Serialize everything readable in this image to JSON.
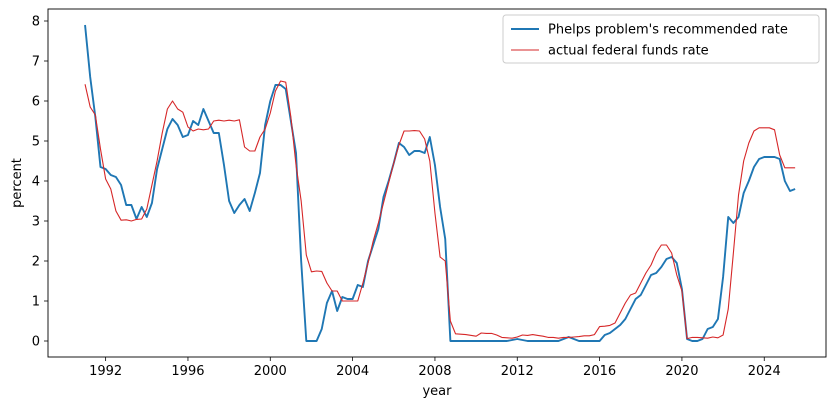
{
  "chart_data": {
    "type": "line",
    "xlabel": "year",
    "ylabel": "percent",
    "xlim": [
      1989.2,
      2027.0
    ],
    "ylim": [
      -0.4,
      8.3
    ],
    "x_ticks": [
      1992,
      1996,
      2000,
      2004,
      2008,
      2012,
      2016,
      2020,
      2024
    ],
    "y_ticks": [
      0,
      1,
      2,
      3,
      4,
      5,
      6,
      7,
      8
    ],
    "grid": false,
    "legend_position": "top-right",
    "series": [
      {
        "name": "Phelps problem's recommended rate",
        "color": "#1f77b4",
        "points": [
          [
            1991.0,
            7.9
          ],
          [
            1991.25,
            6.6
          ],
          [
            1991.5,
            5.6
          ],
          [
            1991.75,
            4.35
          ],
          [
            1992.0,
            4.3
          ],
          [
            1992.25,
            4.15
          ],
          [
            1992.5,
            4.1
          ],
          [
            1992.75,
            3.9
          ],
          [
            1993.0,
            3.4
          ],
          [
            1993.25,
            3.4
          ],
          [
            1993.5,
            3.05
          ],
          [
            1993.75,
            3.35
          ],
          [
            1994.0,
            3.1
          ],
          [
            1994.25,
            3.45
          ],
          [
            1994.5,
            4.3
          ],
          [
            1994.75,
            4.8
          ],
          [
            1995.0,
            5.3
          ],
          [
            1995.25,
            5.55
          ],
          [
            1995.5,
            5.4
          ],
          [
            1995.75,
            5.1
          ],
          [
            1996.0,
            5.15
          ],
          [
            1996.25,
            5.5
          ],
          [
            1996.5,
            5.4
          ],
          [
            1996.75,
            5.8
          ],
          [
            1997.0,
            5.5
          ],
          [
            1997.25,
            5.2
          ],
          [
            1997.5,
            5.2
          ],
          [
            1997.75,
            4.4
          ],
          [
            1998.0,
            3.5
          ],
          [
            1998.25,
            3.2
          ],
          [
            1998.5,
            3.4
          ],
          [
            1998.75,
            3.55
          ],
          [
            1999.0,
            3.25
          ],
          [
            1999.25,
            3.7
          ],
          [
            1999.5,
            4.2
          ],
          [
            1999.75,
            5.4
          ],
          [
            2000.0,
            6.0
          ],
          [
            2000.25,
            6.4
          ],
          [
            2000.5,
            6.4
          ],
          [
            2000.75,
            6.3
          ],
          [
            2001.0,
            5.5
          ],
          [
            2001.25,
            4.7
          ],
          [
            2001.5,
            2.0
          ],
          [
            2001.75,
            0.0
          ],
          [
            2002.0,
            0.0
          ],
          [
            2002.25,
            0.0
          ],
          [
            2002.5,
            0.3
          ],
          [
            2002.75,
            0.95
          ],
          [
            2003.0,
            1.25
          ],
          [
            2003.25,
            0.75
          ],
          [
            2003.5,
            1.1
          ],
          [
            2003.75,
            1.05
          ],
          [
            2004.0,
            1.05
          ],
          [
            2004.25,
            1.4
          ],
          [
            2004.5,
            1.35
          ],
          [
            2004.75,
            2.0
          ],
          [
            2005.0,
            2.4
          ],
          [
            2005.25,
            2.8
          ],
          [
            2005.5,
            3.6
          ],
          [
            2005.75,
            4.0
          ],
          [
            2006.0,
            4.45
          ],
          [
            2006.25,
            4.95
          ],
          [
            2006.5,
            4.85
          ],
          [
            2006.75,
            4.65
          ],
          [
            2007.0,
            4.75
          ],
          [
            2007.25,
            4.75
          ],
          [
            2007.5,
            4.7
          ],
          [
            2007.75,
            5.1
          ],
          [
            2008.0,
            4.4
          ],
          [
            2008.25,
            3.35
          ],
          [
            2008.5,
            2.55
          ],
          [
            2008.75,
            0.0
          ],
          [
            2009.0,
            0.0
          ],
          [
            2009.5,
            0.0
          ],
          [
            2010.0,
            0.0
          ],
          [
            2010.5,
            0.0
          ],
          [
            2011.0,
            0.0
          ],
          [
            2011.5,
            0.0
          ],
          [
            2012.0,
            0.05
          ],
          [
            2012.5,
            0.0
          ],
          [
            2013.0,
            0.0
          ],
          [
            2013.5,
            0.0
          ],
          [
            2014.0,
            0.0
          ],
          [
            2014.5,
            0.1
          ],
          [
            2015.0,
            0.0
          ],
          [
            2015.5,
            0.0
          ],
          [
            2016.0,
            0.0
          ],
          [
            2016.25,
            0.15
          ],
          [
            2016.5,
            0.2
          ],
          [
            2016.75,
            0.3
          ],
          [
            2017.0,
            0.4
          ],
          [
            2017.25,
            0.55
          ],
          [
            2017.5,
            0.8
          ],
          [
            2017.75,
            1.05
          ],
          [
            2018.0,
            1.15
          ],
          [
            2018.25,
            1.4
          ],
          [
            2018.5,
            1.65
          ],
          [
            2018.75,
            1.7
          ],
          [
            2019.0,
            1.85
          ],
          [
            2019.25,
            2.05
          ],
          [
            2019.5,
            2.1
          ],
          [
            2019.75,
            1.95
          ],
          [
            2020.0,
            1.3
          ],
          [
            2020.25,
            0.05
          ],
          [
            2020.5,
            0.0
          ],
          [
            2020.75,
            0.0
          ],
          [
            2021.0,
            0.05
          ],
          [
            2021.25,
            0.3
          ],
          [
            2021.5,
            0.35
          ],
          [
            2021.75,
            0.55
          ],
          [
            2022.0,
            1.6
          ],
          [
            2022.25,
            3.1
          ],
          [
            2022.5,
            2.95
          ],
          [
            2022.75,
            3.1
          ],
          [
            2023.0,
            3.7
          ],
          [
            2023.25,
            4.0
          ],
          [
            2023.5,
            4.35
          ],
          [
            2023.75,
            4.55
          ],
          [
            2024.0,
            4.6
          ],
          [
            2024.25,
            4.6
          ],
          [
            2024.5,
            4.6
          ],
          [
            2024.75,
            4.55
          ],
          [
            2025.0,
            4.0
          ],
          [
            2025.25,
            3.75
          ],
          [
            2025.5,
            3.8
          ]
        ]
      },
      {
        "name": "actual federal funds rate",
        "color": "#d62728",
        "points": [
          [
            1991.0,
            6.42
          ],
          [
            1991.25,
            5.85
          ],
          [
            1991.5,
            5.65
          ],
          [
            1991.75,
            4.8
          ],
          [
            1992.0,
            4.05
          ],
          [
            1992.25,
            3.8
          ],
          [
            1992.5,
            3.25
          ],
          [
            1992.75,
            3.02
          ],
          [
            1993.0,
            3.03
          ],
          [
            1993.25,
            3.0
          ],
          [
            1993.5,
            3.04
          ],
          [
            1993.75,
            3.05
          ],
          [
            1994.0,
            3.3
          ],
          [
            1994.25,
            3.9
          ],
          [
            1994.5,
            4.5
          ],
          [
            1994.75,
            5.2
          ],
          [
            1995.0,
            5.8
          ],
          [
            1995.25,
            6.0
          ],
          [
            1995.5,
            5.8
          ],
          [
            1995.75,
            5.72
          ],
          [
            1996.0,
            5.35
          ],
          [
            1996.25,
            5.25
          ],
          [
            1996.5,
            5.3
          ],
          [
            1996.75,
            5.28
          ],
          [
            1997.0,
            5.3
          ],
          [
            1997.25,
            5.5
          ],
          [
            1997.5,
            5.52
          ],
          [
            1997.75,
            5.5
          ],
          [
            1998.0,
            5.52
          ],
          [
            1998.25,
            5.5
          ],
          [
            1998.5,
            5.53
          ],
          [
            1998.75,
            4.85
          ],
          [
            1999.0,
            4.75
          ],
          [
            1999.25,
            4.75
          ],
          [
            1999.5,
            5.1
          ],
          [
            1999.75,
            5.3
          ],
          [
            2000.0,
            5.7
          ],
          [
            2000.25,
            6.25
          ],
          [
            2000.5,
            6.5
          ],
          [
            2000.75,
            6.47
          ],
          [
            2001.0,
            5.6
          ],
          [
            2001.25,
            4.4
          ],
          [
            2001.5,
            3.5
          ],
          [
            2001.75,
            2.15
          ],
          [
            2002.0,
            1.73
          ],
          [
            2002.25,
            1.75
          ],
          [
            2002.5,
            1.74
          ],
          [
            2002.75,
            1.45
          ],
          [
            2003.0,
            1.25
          ],
          [
            2003.25,
            1.25
          ],
          [
            2003.5,
            1.0
          ],
          [
            2003.75,
            1.0
          ],
          [
            2004.0,
            1.0
          ],
          [
            2004.25,
            1.0
          ],
          [
            2004.5,
            1.45
          ],
          [
            2004.75,
            1.95
          ],
          [
            2005.0,
            2.5
          ],
          [
            2005.25,
            2.95
          ],
          [
            2005.5,
            3.45
          ],
          [
            2005.75,
            3.95
          ],
          [
            2006.0,
            4.45
          ],
          [
            2006.25,
            4.9
          ],
          [
            2006.5,
            5.25
          ],
          [
            2006.75,
            5.25
          ],
          [
            2007.0,
            5.26
          ],
          [
            2007.25,
            5.25
          ],
          [
            2007.5,
            5.05
          ],
          [
            2007.75,
            4.5
          ],
          [
            2008.0,
            3.2
          ],
          [
            2008.25,
            2.1
          ],
          [
            2008.5,
            2.0
          ],
          [
            2008.75,
            0.5
          ],
          [
            2009.0,
            0.18
          ],
          [
            2009.5,
            0.16
          ],
          [
            2010.0,
            0.12
          ],
          [
            2010.25,
            0.2
          ],
          [
            2010.5,
            0.19
          ],
          [
            2010.75,
            0.19
          ],
          [
            2011.0,
            0.15
          ],
          [
            2011.25,
            0.09
          ],
          [
            2011.5,
            0.08
          ],
          [
            2011.75,
            0.07
          ],
          [
            2012.0,
            0.1
          ],
          [
            2012.25,
            0.15
          ],
          [
            2012.5,
            0.14
          ],
          [
            2012.75,
            0.16
          ],
          [
            2013.0,
            0.14
          ],
          [
            2013.25,
            0.12
          ],
          [
            2013.5,
            0.09
          ],
          [
            2013.75,
            0.09
          ],
          [
            2014.0,
            0.07
          ],
          [
            2014.25,
            0.09
          ],
          [
            2014.5,
            0.09
          ],
          [
            2014.75,
            0.1
          ],
          [
            2015.0,
            0.11
          ],
          [
            2015.25,
            0.13
          ],
          [
            2015.5,
            0.13
          ],
          [
            2015.75,
            0.16
          ],
          [
            2016.0,
            0.36
          ],
          [
            2016.25,
            0.37
          ],
          [
            2016.5,
            0.39
          ],
          [
            2016.75,
            0.45
          ],
          [
            2017.0,
            0.7
          ],
          [
            2017.25,
            0.95
          ],
          [
            2017.5,
            1.15
          ],
          [
            2017.75,
            1.2
          ],
          [
            2018.0,
            1.45
          ],
          [
            2018.25,
            1.7
          ],
          [
            2018.5,
            1.9
          ],
          [
            2018.75,
            2.2
          ],
          [
            2019.0,
            2.4
          ],
          [
            2019.25,
            2.4
          ],
          [
            2019.5,
            2.2
          ],
          [
            2019.75,
            1.65
          ],
          [
            2020.0,
            1.25
          ],
          [
            2020.25,
            0.06
          ],
          [
            2020.5,
            0.09
          ],
          [
            2020.75,
            0.09
          ],
          [
            2021.0,
            0.08
          ],
          [
            2021.25,
            0.07
          ],
          [
            2021.5,
            0.1
          ],
          [
            2021.75,
            0.08
          ],
          [
            2022.0,
            0.15
          ],
          [
            2022.25,
            0.8
          ],
          [
            2022.5,
            2.2
          ],
          [
            2022.75,
            3.65
          ],
          [
            2023.0,
            4.5
          ],
          [
            2023.25,
            4.95
          ],
          [
            2023.5,
            5.25
          ],
          [
            2023.75,
            5.33
          ],
          [
            2024.0,
            5.33
          ],
          [
            2024.25,
            5.33
          ],
          [
            2024.5,
            5.28
          ],
          [
            2024.75,
            4.65
          ],
          [
            2025.0,
            4.33
          ],
          [
            2025.25,
            4.33
          ],
          [
            2025.5,
            4.33
          ]
        ]
      }
    ]
  }
}
